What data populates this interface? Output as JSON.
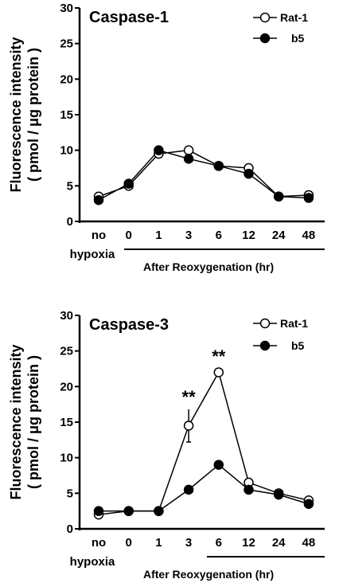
{
  "chart_data": [
    {
      "type": "line",
      "title": "Caspase-1",
      "ylabel": [
        "Fluorescence intensity",
        "( pmol / μg protein )"
      ],
      "xlabel": "After  Reoxygenation  (hr)",
      "categories": [
        "no",
        "0",
        "1",
        "3",
        "6",
        "12",
        "24",
        "48"
      ],
      "category_sublabel": "hypoxia",
      "ylim": [
        0,
        30
      ],
      "yticks": [
        "0",
        "5",
        "10",
        "15",
        "20",
        "25",
        "30"
      ],
      "legend_position": "top-right",
      "series": [
        {
          "name": "Rat-1",
          "marker": "open-circle",
          "values": [
            3.5,
            5.0,
            9.5,
            10.0,
            7.8,
            7.5,
            3.5,
            3.7
          ]
        },
        {
          "name": "b5",
          "marker": "filled-circle",
          "values": [
            3.0,
            5.3,
            10.0,
            8.8,
            7.8,
            6.7,
            3.5,
            3.3
          ]
        }
      ],
      "annotations": []
    },
    {
      "type": "line",
      "title": "Caspase-3",
      "ylabel": [
        "Fluorescence intensity",
        "( pmol / μg protein )"
      ],
      "xlabel": "After  Reoxygenation  (hr)",
      "categories": [
        "no",
        "0",
        "1",
        "3",
        "6",
        "12",
        "24",
        "48"
      ],
      "category_sublabel": "hypoxia",
      "ylim": [
        0,
        30
      ],
      "yticks": [
        "0",
        "5",
        "10",
        "15",
        "20",
        "25",
        "30"
      ],
      "legend_position": "top-right",
      "series": [
        {
          "name": "Rat-1",
          "marker": "open-circle",
          "values": [
            2.0,
            2.5,
            2.5,
            14.5,
            22.0,
            6.5,
            5.0,
            4.0
          ],
          "error": [
            0,
            0,
            0,
            2.3,
            0.5,
            0,
            0,
            0
          ]
        },
        {
          "name": "b5",
          "marker": "filled-circle",
          "values": [
            2.5,
            2.5,
            2.5,
            5.5,
            9.0,
            5.5,
            4.8,
            3.5
          ]
        }
      ],
      "annotations": [
        {
          "text": "**",
          "category": "3"
        },
        {
          "text": "**",
          "category": "6"
        }
      ]
    }
  ]
}
